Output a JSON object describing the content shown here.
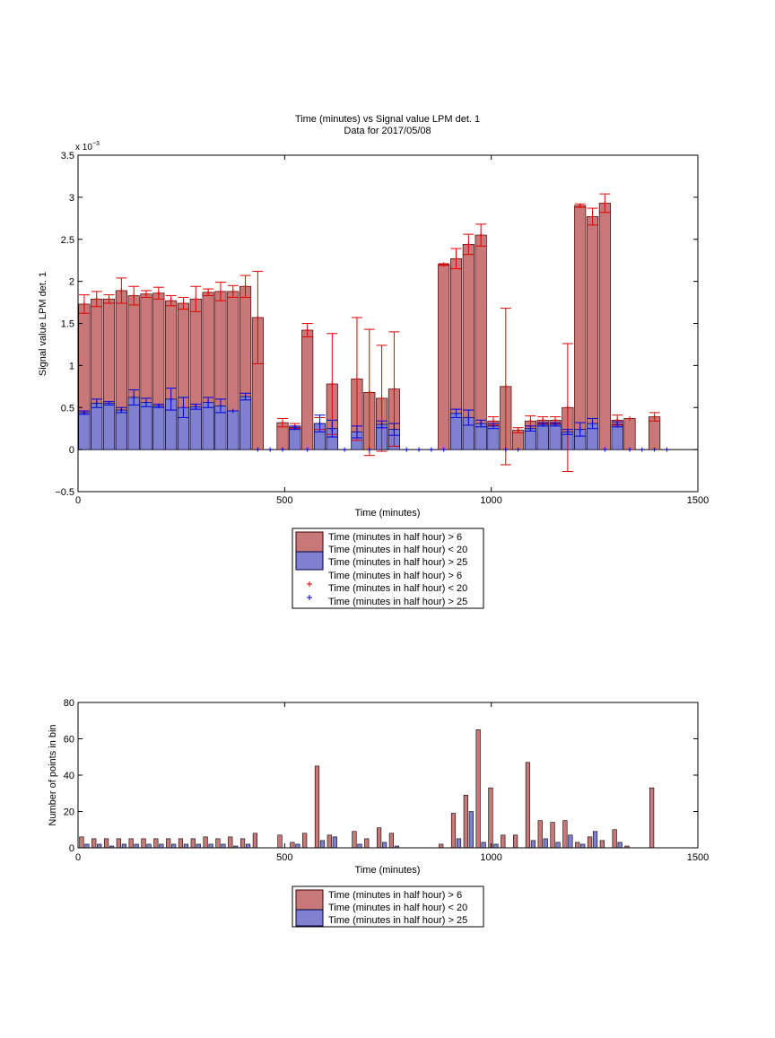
{
  "chart_data": [
    {
      "type": "bar",
      "title": "Time (minutes) vs Signal value LPM det. 1",
      "subtitle": "Data for 2017/05/08",
      "xlabel": "Time (minutes)",
      "ylabel": "Signal value LPM det. 1",
      "exponent_label": "x 10",
      "exponent_power": "−3",
      "xlim": [
        0,
        1500
      ],
      "ylim": [
        -0.5,
        3.5
      ],
      "xticks": [
        "0",
        "500",
        "1000",
        "1500"
      ],
      "yticks": [
        "−0.5",
        "0",
        "0.5",
        "1",
        "1.5",
        "2",
        "2.5",
        "3",
        "3.5"
      ],
      "x": [
        15,
        45,
        75,
        105,
        135,
        165,
        195,
        225,
        255,
        285,
        315,
        345,
        375,
        405,
        435,
        465,
        495,
        525,
        555,
        585,
        615,
        645,
        675,
        705,
        735,
        765,
        795,
        825,
        855,
        885,
        915,
        945,
        975,
        1005,
        1035,
        1065,
        1095,
        1125,
        1155,
        1185,
        1215,
        1245,
        1275,
        1305,
        1335,
        1365,
        1395,
        1425
      ],
      "series": [
        {
          "name": "Time (minutes in half hour) > 6",
          "color": "#c87878",
          "values": [
            1.73,
            1.79,
            1.79,
            1.89,
            1.83,
            1.85,
            1.86,
            1.77,
            1.74,
            1.79,
            1.87,
            1.88,
            1.88,
            1.94,
            1.57,
            null,
            0.32,
            0.28,
            1.42,
            0.31,
            0.78,
            null,
            0.84,
            0.68,
            0.61,
            0.72,
            null,
            null,
            null,
            2.2,
            2.27,
            2.44,
            2.55,
            0.34,
            0.75,
            0.23,
            0.34,
            0.35,
            0.35,
            0.5,
            2.9,
            2.77,
            2.93,
            0.35,
            0.37,
            null,
            0.39,
            null
          ],
          "err": [
            0.11,
            0.09,
            0.05,
            0.15,
            0.11,
            0.04,
            0.07,
            0.06,
            0.07,
            0.15,
            0.04,
            0.11,
            0.07,
            0.13,
            0.55,
            null,
            0.05,
            0.03,
            0.08,
            0.07,
            0.6,
            null,
            0.73,
            0.75,
            0.63,
            0.68,
            null,
            null,
            null,
            0.01,
            0.12,
            0.12,
            0.13,
            0.05,
            0.93,
            0.03,
            0.06,
            0.04,
            0.04,
            0.76,
            0.02,
            0.1,
            0.11,
            0.06,
            null,
            null,
            0.05,
            null
          ]
        },
        {
          "name": "Time (minutes in half hour) < 20",
          "color": "#8080d0",
          "values": [
            0.44,
            0.55,
            0.55,
            0.47,
            0.62,
            0.56,
            0.52,
            0.6,
            0.5,
            0.51,
            0.56,
            0.52,
            0.46,
            0.63,
            0.0,
            0.0,
            0.0,
            0.26,
            0.0,
            0.31,
            0.25,
            0.0,
            0.21,
            0.0,
            0.3,
            0.24,
            0.0,
            0.0,
            0.0,
            0.0,
            0.43,
            0.38,
            0.31,
            0.28,
            0.0,
            0.0,
            0.25,
            0.3,
            0.3,
            0.21,
            0.24,
            0.31,
            0.0,
            0.3,
            0.0,
            0.0,
            0.0,
            0.0
          ],
          "err": [
            0.02,
            0.05,
            0.02,
            0.03,
            0.09,
            0.05,
            0.02,
            0.13,
            0.12,
            0.03,
            0.06,
            0.08,
            0.0,
            0.04,
            null,
            null,
            null,
            0.02,
            null,
            0.1,
            0.1,
            null,
            0.07,
            null,
            0.04,
            0.07,
            null,
            null,
            null,
            null,
            0.05,
            0.09,
            0.04,
            0.03,
            null,
            null,
            0.03,
            0.02,
            0.02,
            0.03,
            0.08,
            0.06,
            null,
            0.03,
            null,
            null,
            null,
            null
          ]
        }
      ],
      "legend": [
        "Time (minutes in half hour) > 6",
        "Time (minutes in half hour) < 20",
        "Time (minutes in half hour) > 25",
        "Time (minutes in half hour) > 6",
        "Time (minutes in half hour) < 20",
        "Time (minutes in half hour) > 25"
      ],
      "legend_placement": "below"
    },
    {
      "type": "bar",
      "xlabel": "Time (minutes)",
      "ylabel": "Number of points in bin",
      "xlim": [
        0,
        1500
      ],
      "ylim": [
        0,
        80
      ],
      "xticks": [
        "0",
        "500",
        "1000",
        "1500"
      ],
      "yticks": [
        "0",
        "20",
        "40",
        "60",
        "80"
      ],
      "x": [
        15,
        45,
        75,
        105,
        135,
        165,
        195,
        225,
        255,
        285,
        315,
        345,
        375,
        405,
        435,
        465,
        495,
        525,
        555,
        585,
        615,
        645,
        675,
        705,
        735,
        765,
        795,
        825,
        855,
        885,
        915,
        945,
        975,
        1005,
        1035,
        1065,
        1095,
        1125,
        1155,
        1185,
        1215,
        1245,
        1275,
        1305,
        1335,
        1365,
        1395,
        1425
      ],
      "series": [
        {
          "name": "Time (minutes in half hour) > 6",
          "color": "#c87878",
          "values": [
            6,
            5,
            5,
            5,
            5,
            5,
            5,
            5,
            5,
            5,
            6,
            5,
            6,
            5,
            8,
            0,
            7,
            3,
            8,
            45,
            7,
            0,
            9,
            5,
            11,
            8,
            0,
            0,
            0,
            2,
            19,
            29,
            65,
            33,
            7,
            7,
            47,
            15,
            14,
            15,
            3,
            6,
            4,
            10,
            1,
            0,
            33,
            0
          ]
        },
        {
          "name": "Time (minutes in half hour) < 20",
          "color": "#8080d0",
          "values": [
            2,
            2,
            1,
            2,
            2,
            2,
            2,
            2,
            2,
            2,
            2,
            2,
            1,
            2,
            0,
            0,
            0,
            2,
            0,
            4,
            6,
            0,
            2,
            0,
            3,
            1,
            0,
            0,
            0,
            0,
            5,
            20,
            3,
            2,
            0,
            0,
            4,
            5,
            3,
            7,
            2,
            9,
            0,
            3,
            0,
            0,
            0,
            0
          ]
        }
      ],
      "legend": [
        "Time (minutes in half hour) > 6",
        "Time (minutes in half hour) < 20",
        "Time (minutes in half hour) > 25"
      ],
      "legend_placement": "below"
    }
  ]
}
